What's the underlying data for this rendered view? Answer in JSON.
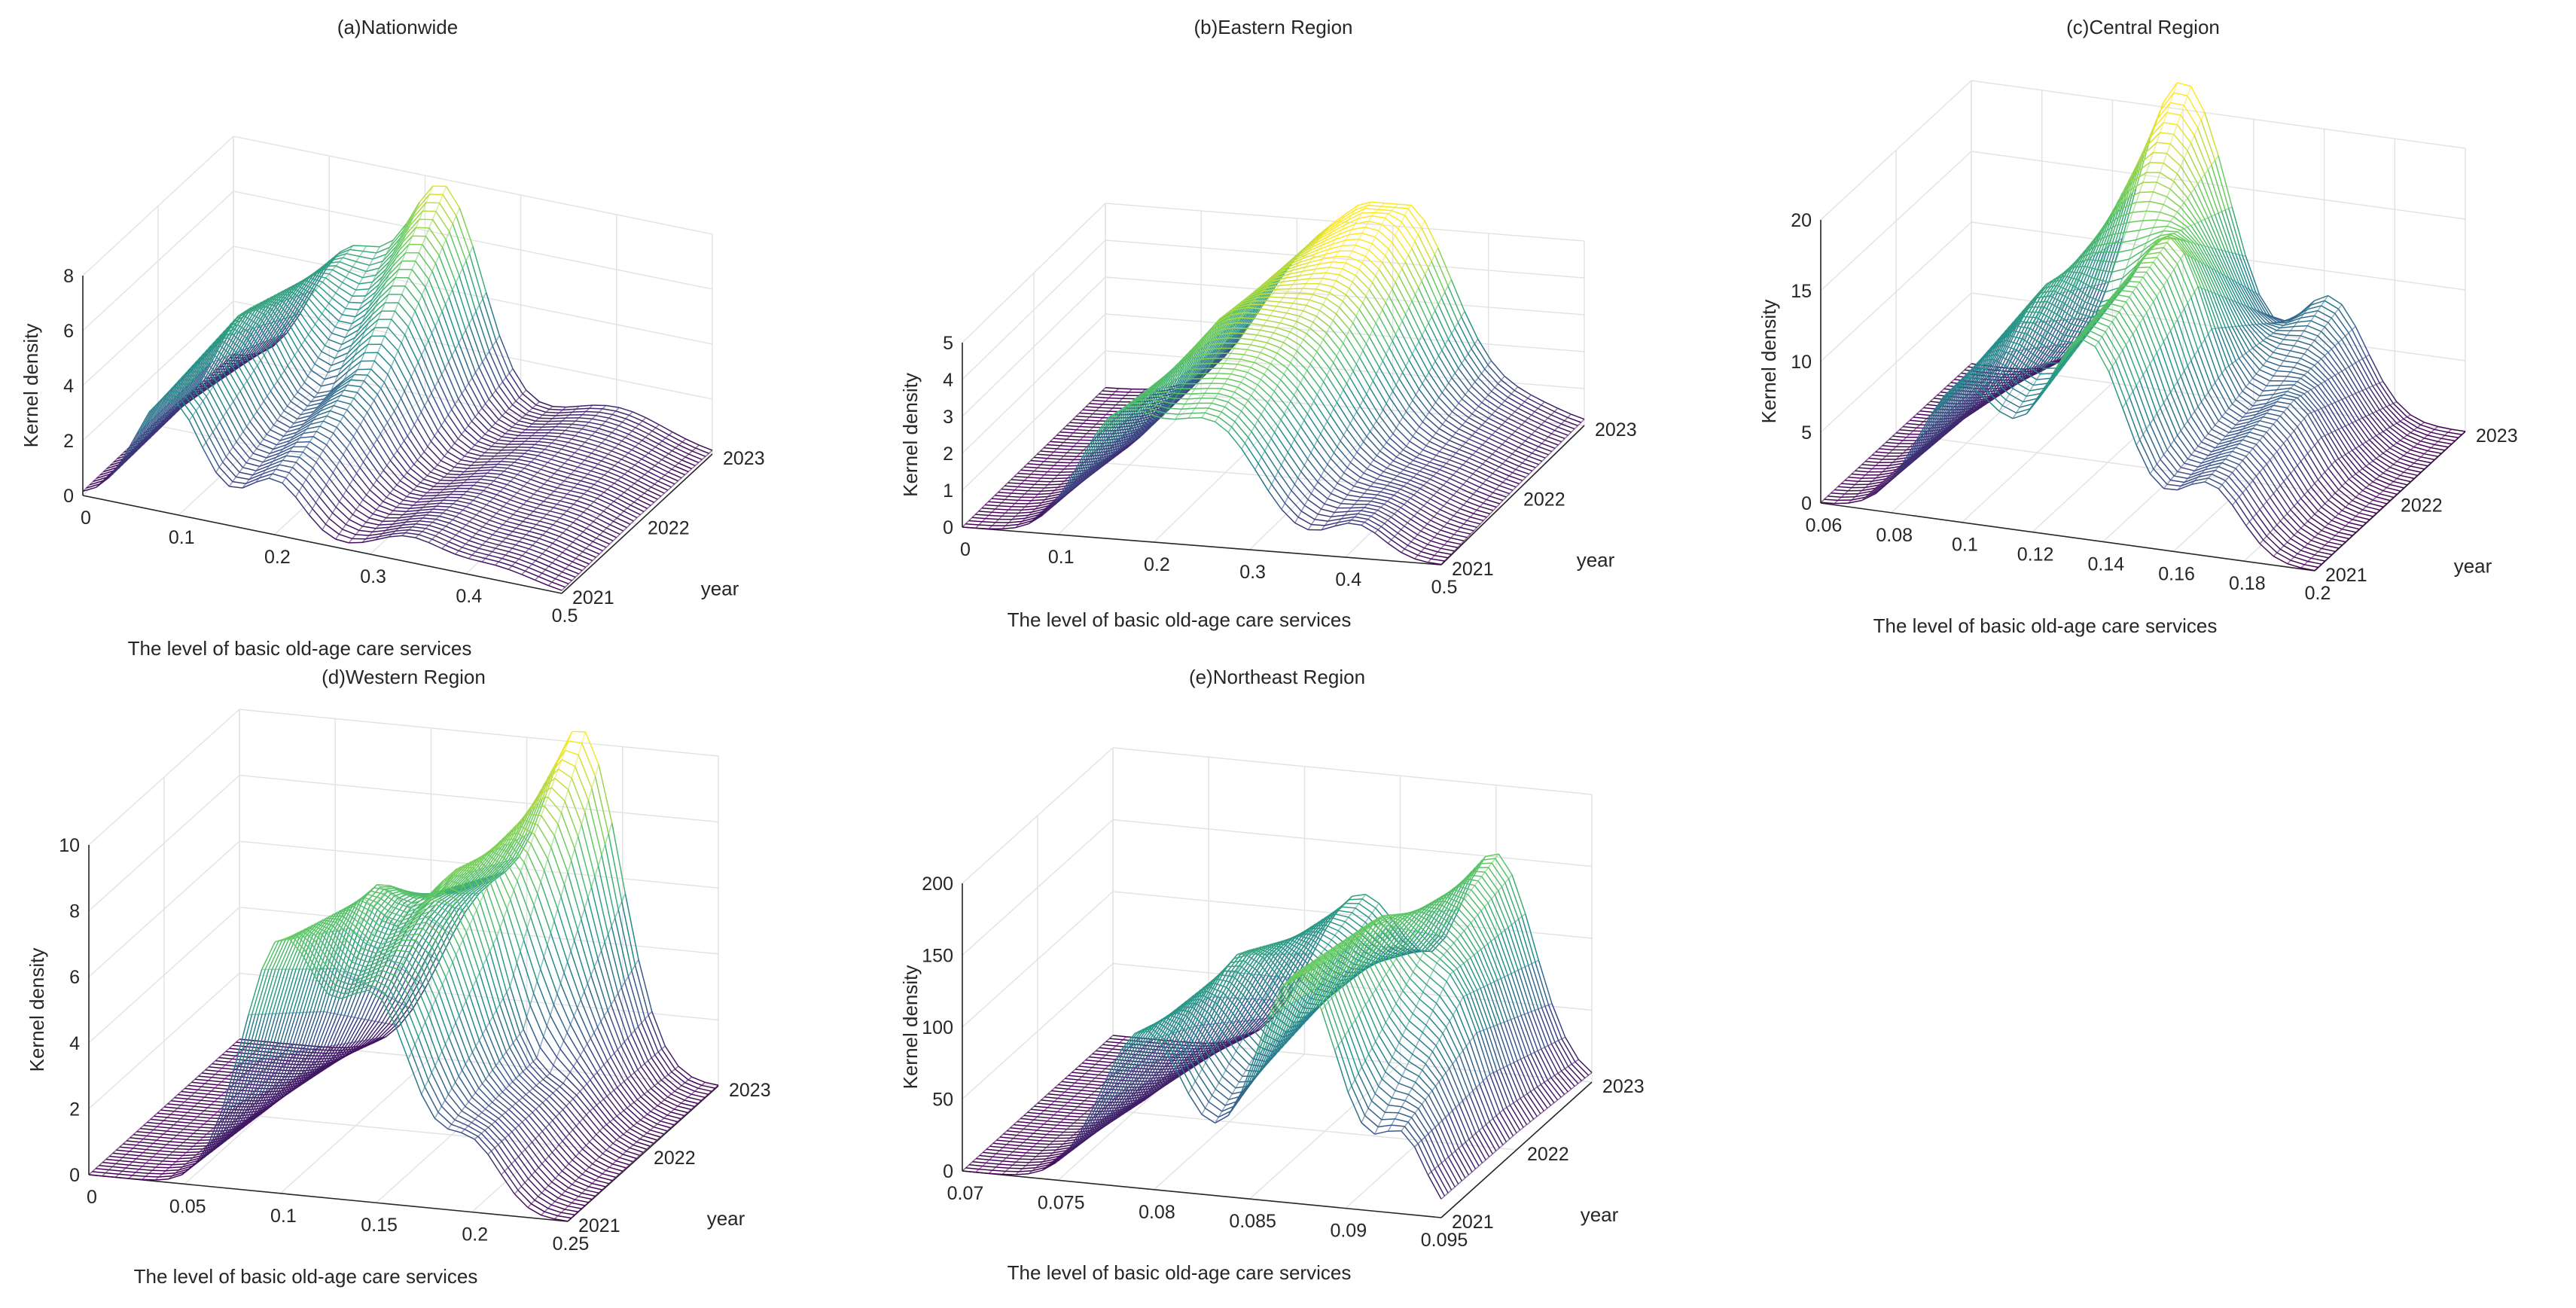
{
  "figure": {
    "panel_count": 5
  },
  "colormap": [
    "#440154",
    "#3b528b",
    "#21918c",
    "#5ec962",
    "#fde725"
  ],
  "chart_data": [
    {
      "type": "surface",
      "title": "(a)Nationwide",
      "xlabel": "The level of basic old-age care services",
      "ylabel": "year",
      "zlabel": "Kernel density",
      "xlim": [
        0,
        0.5
      ],
      "xticks": [
        "0",
        "0.1",
        "0.2",
        "0.3",
        "0.4",
        "0.5"
      ],
      "yticks": [
        "2021",
        "2022",
        "2023"
      ],
      "zlim": [
        0,
        8
      ],
      "zticks": [
        "0",
        "2",
        "4",
        "6",
        "8"
      ],
      "density": {
        "2021": [
          {
            "mu": 0.09,
            "sd": 0.035,
            "h": 4.2
          },
          {
            "mu": 0.2,
            "sd": 0.03,
            "h": 2.0
          },
          {
            "mu": 0.34,
            "sd": 0.035,
            "h": 0.9
          },
          {
            "mu": 0.43,
            "sd": 0.04,
            "h": 0.5
          }
        ],
        "2022": [
          {
            "mu": 0.1,
            "sd": 0.04,
            "h": 5.0
          },
          {
            "mu": 0.22,
            "sd": 0.035,
            "h": 3.6
          },
          {
            "mu": 0.36,
            "sd": 0.04,
            "h": 0.9
          },
          {
            "mu": 0.45,
            "sd": 0.035,
            "h": 0.6
          }
        ],
        "2023": [
          {
            "mu": 0.12,
            "sd": 0.04,
            "h": 4.5
          },
          {
            "mu": 0.22,
            "sd": 0.04,
            "h": 7.6
          },
          {
            "mu": 0.4,
            "sd": 0.05,
            "h": 1.0
          }
        ]
      }
    },
    {
      "type": "surface",
      "title": "(b)Eastern Region",
      "xlabel": "The level of basic old-age care services",
      "ylabel": "year",
      "zlabel": "Kernel density",
      "xlim": [
        0,
        0.5
      ],
      "xticks": [
        "0",
        "0.1",
        "0.2",
        "0.3",
        "0.4",
        "0.5"
      ],
      "yticks": [
        "2021",
        "2022",
        "2023"
      ],
      "zlim": [
        0,
        5
      ],
      "zticks": [
        "0",
        "1",
        "2",
        "3",
        "4",
        "5"
      ],
      "density": {
        "2021": [
          {
            "mu": 0.16,
            "sd": 0.04,
            "h": 3.0
          },
          {
            "mu": 0.26,
            "sd": 0.05,
            "h": 3.3
          },
          {
            "mu": 0.41,
            "sd": 0.03,
            "h": 0.9
          }
        ],
        "2022": [
          {
            "mu": 0.2,
            "sd": 0.05,
            "h": 3.8
          },
          {
            "mu": 0.3,
            "sd": 0.05,
            "h": 3.6
          },
          {
            "mu": 0.43,
            "sd": 0.04,
            "h": 0.6
          }
        ],
        "2023": [
          {
            "mu": 0.22,
            "sd": 0.06,
            "h": 3.9
          },
          {
            "mu": 0.32,
            "sd": 0.05,
            "h": 4.7
          },
          {
            "mu": 0.44,
            "sd": 0.04,
            "h": 0.5
          }
        ]
      }
    },
    {
      "type": "surface",
      "title": "(c)Central Region",
      "xlabel": "The level of basic old-age care services",
      "ylabel": "year",
      "zlabel": "Kernel density",
      "xlim": [
        0.06,
        0.2
      ],
      "xticks": [
        "0.06",
        "0.08",
        "0.1",
        "0.12",
        "0.14",
        "0.16",
        "0.18",
        "0.2"
      ],
      "yticks": [
        "2021",
        "2022",
        "2023"
      ],
      "zlim": [
        0,
        20
      ],
      "zticks": [
        "0",
        "5",
        "10",
        "15",
        "20"
      ],
      "density": {
        "2021": [
          {
            "mu": 0.1,
            "sd": 0.012,
            "h": 9.5
          },
          {
            "mu": 0.135,
            "sd": 0.012,
            "h": 14.0
          },
          {
            "mu": 0.17,
            "sd": 0.009,
            "h": 5.0
          }
        ],
        "2022": [
          {
            "mu": 0.105,
            "sd": 0.013,
            "h": 12.0
          },
          {
            "mu": 0.138,
            "sd": 0.012,
            "h": 16.0
          },
          {
            "mu": 0.172,
            "sd": 0.009,
            "h": 6.0
          }
        ],
        "2023": [
          {
            "mu": 0.12,
            "sd": 0.014,
            "h": 22.0
          },
          {
            "mu": 0.162,
            "sd": 0.01,
            "h": 8.0
          }
        ]
      }
    },
    {
      "type": "surface",
      "title": "(d)Western Region",
      "xlabel": "The level of basic old-age care services",
      "ylabel": "year",
      "zlabel": "Kernel density",
      "xlim": [
        0,
        0.25
      ],
      "xticks": [
        "0",
        "0.05",
        "0.1",
        "0.15",
        "0.2",
        "0.25"
      ],
      "yticks": [
        "2021",
        "2022",
        "2023"
      ],
      "zlim": [
        0,
        10
      ],
      "zticks": [
        "0",
        "2",
        "4",
        "6",
        "8",
        "10"
      ],
      "density": {
        "2021": [
          {
            "mu": 0.1,
            "sd": 0.02,
            "h": 7.5
          },
          {
            "mu": 0.15,
            "sd": 0.02,
            "h": 6.0
          },
          {
            "mu": 0.2,
            "sd": 0.015,
            "h": 2.0
          }
        ],
        "2022": [
          {
            "mu": 0.11,
            "sd": 0.022,
            "h": 7.0
          },
          {
            "mu": 0.16,
            "sd": 0.02,
            "h": 7.5
          },
          {
            "mu": 0.21,
            "sd": 0.015,
            "h": 1.5
          }
        ],
        "2023": [
          {
            "mu": 0.13,
            "sd": 0.025,
            "h": 5.0
          },
          {
            "mu": 0.18,
            "sd": 0.02,
            "h": 9.7
          }
        ]
      }
    },
    {
      "type": "surface",
      "title": "(e)Northeast Region",
      "xlabel": "The level of basic old-age care services",
      "ylabel": "year",
      "zlabel": "Kernel density",
      "xlim": [
        0.07,
        0.095
      ],
      "xticks": [
        "0.07",
        "0.075",
        "0.08",
        "0.085",
        "0.09",
        "0.095"
      ],
      "yticks": [
        "2021",
        "2022",
        "2023"
      ],
      "zlim": [
        0,
        200
      ],
      "zticks": [
        "0",
        "50",
        "100",
        "150",
        "200"
      ],
      "density": {
        "2021": [
          {
            "mu": 0.0795,
            "sd": 0.0022,
            "h": 110
          },
          {
            "mu": 0.0875,
            "sd": 0.0022,
            "h": 160
          },
          {
            "mu": 0.093,
            "sd": 0.0012,
            "h": 50
          }
        ],
        "2022": [
          {
            "mu": 0.081,
            "sd": 0.0024,
            "h": 120
          },
          {
            "mu": 0.088,
            "sd": 0.0022,
            "h": 150
          },
          {
            "mu": 0.092,
            "sd": 0.0015,
            "h": 80
          }
        ],
        "2023": [
          {
            "mu": 0.083,
            "sd": 0.0026,
            "h": 115
          },
          {
            "mu": 0.09,
            "sd": 0.002,
            "h": 150
          }
        ]
      }
    }
  ]
}
